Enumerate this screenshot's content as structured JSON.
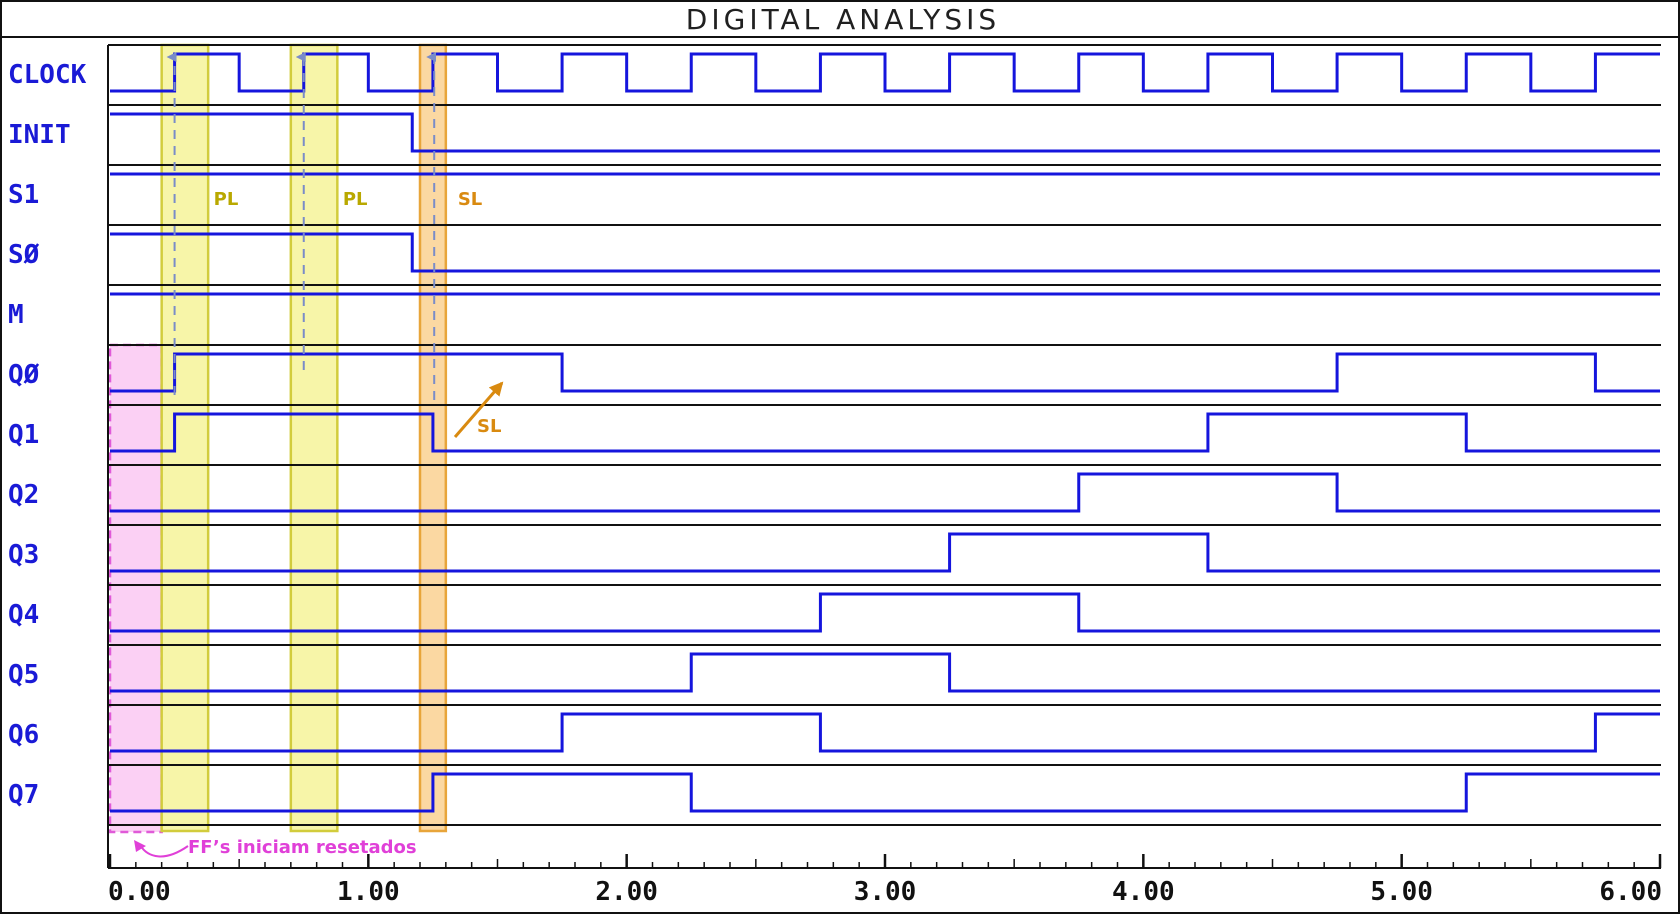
{
  "window": {
    "title": "DIGITAL ANALYSIS"
  },
  "colors": {
    "trace": "#1515dd",
    "grid": "#111111",
    "pl_fill": "#f7f5a8",
    "pl_stroke": "#d2cc3c",
    "sl_fill": "#fbd8a2",
    "sl_stroke": "#e8a53a",
    "reset_fill": "#fbd0f4",
    "reset_stroke": "#e05ad8",
    "arrow": "#7a8cc8",
    "pl_text": "#b9a800",
    "sl_text": "#d98a10",
    "reset_text": "#e040d8"
  },
  "chart_data": {
    "type": "timing",
    "title": "DIGITAL ANALYSIS",
    "xlim": [
      0,
      6
    ],
    "x_ticks": [
      {
        "value": 0,
        "label": "0.00"
      },
      {
        "value": 1,
        "label": "1.00"
      },
      {
        "value": 2,
        "label": "2.00"
      },
      {
        "value": 3,
        "label": "3.00"
      },
      {
        "value": 4,
        "label": "4.00"
      },
      {
        "value": 5,
        "label": "5.00"
      },
      {
        "value": 6,
        "label": "6.00"
      }
    ],
    "signals": [
      {
        "name": "CLOCK",
        "initial": 0,
        "transitions": [
          [
            0.25,
            1
          ],
          [
            0.5,
            0
          ],
          [
            0.75,
            1
          ],
          [
            1.0,
            0
          ],
          [
            1.25,
            1
          ],
          [
            1.5,
            0
          ],
          [
            1.75,
            1
          ],
          [
            2.0,
            0
          ],
          [
            2.25,
            1
          ],
          [
            2.5,
            0
          ],
          [
            2.75,
            1
          ],
          [
            3.0,
            0
          ],
          [
            3.25,
            1
          ],
          [
            3.5,
            0
          ],
          [
            3.75,
            1
          ],
          [
            4.0,
            0
          ],
          [
            4.25,
            1
          ],
          [
            4.5,
            0
          ],
          [
            4.75,
            1
          ],
          [
            5.0,
            0
          ],
          [
            5.25,
            1
          ],
          [
            5.5,
            0
          ],
          [
            5.75,
            1
          ]
        ]
      },
      {
        "name": "INIT",
        "initial": 1,
        "transitions": [
          [
            1.17,
            0
          ]
        ]
      },
      {
        "name": "S1",
        "initial": 1,
        "transitions": []
      },
      {
        "name": "SØ",
        "initial": 1,
        "transitions": [
          [
            1.17,
            0
          ]
        ]
      },
      {
        "name": "M",
        "initial": 1,
        "transitions": []
      },
      {
        "name": "QØ",
        "initial": 0,
        "transitions": [
          [
            0.25,
            1
          ],
          [
            1.75,
            0
          ],
          [
            4.75,
            1
          ],
          [
            5.75,
            0
          ]
        ]
      },
      {
        "name": "Q1",
        "initial": 0,
        "transitions": [
          [
            0.25,
            1
          ],
          [
            1.25,
            0
          ],
          [
            4.25,
            1
          ],
          [
            5.25,
            0
          ]
        ]
      },
      {
        "name": "Q2",
        "initial": 0,
        "transitions": [
          [
            3.75,
            1
          ],
          [
            4.75,
            0
          ]
        ]
      },
      {
        "name": "Q3",
        "initial": 0,
        "transitions": [
          [
            3.25,
            1
          ],
          [
            4.25,
            0
          ]
        ]
      },
      {
        "name": "Q4",
        "initial": 0,
        "transitions": [
          [
            2.75,
            1
          ],
          [
            3.75,
            0
          ]
        ]
      },
      {
        "name": "Q5",
        "initial": 0,
        "transitions": [
          [
            2.25,
            1
          ],
          [
            3.25,
            0
          ]
        ]
      },
      {
        "name": "Q6",
        "initial": 0,
        "transitions": [
          [
            1.75,
            1
          ],
          [
            2.75,
            0
          ],
          [
            5.75,
            1
          ]
        ]
      },
      {
        "name": "Q7",
        "initial": 0,
        "transitions": [
          [
            1.25,
            1
          ],
          [
            2.25,
            0
          ],
          [
            5.25,
            1
          ]
        ]
      }
    ],
    "annotations": [
      {
        "kind": "reset",
        "x0": 0.0,
        "x1": 0.2,
        "label": "FF’s iniciam resetados"
      },
      {
        "kind": "pl",
        "x0": 0.2,
        "x1": 0.38,
        "label": "PL"
      },
      {
        "kind": "pl",
        "x0": 0.7,
        "x1": 0.88,
        "label": "PL"
      },
      {
        "kind": "sl",
        "x0": 1.2,
        "x1": 1.3,
        "label": "SL"
      },
      {
        "kind": "sl-arrow",
        "label": "SL"
      }
    ]
  }
}
